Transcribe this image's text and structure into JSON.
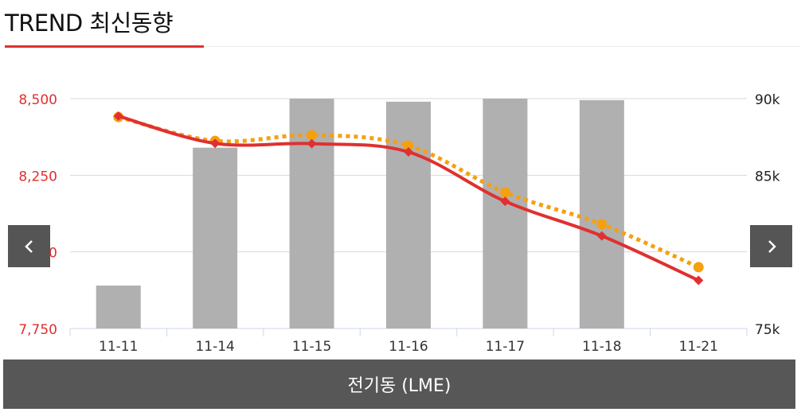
{
  "header": {
    "title": "TREND 최신동향"
  },
  "footer": {
    "label": "전기동 (LME)"
  },
  "nav": {
    "prev_icon": "chevron-left-icon",
    "next_icon": "chevron-right-icon"
  },
  "colors": {
    "bar": "#b0b0b0",
    "line_main": "#e03030",
    "line_dotted": "#f5a011",
    "left_axis_text": "#e03030",
    "accent": "#e03030"
  },
  "chart_data": {
    "type": "bar+line",
    "categories": [
      "11-11",
      "11-14",
      "11-15",
      "11-16",
      "11-17",
      "11-18",
      "11-21"
    ],
    "left_axis": {
      "ticks": [
        "7,750",
        "8,000",
        "8,250",
        "8,500"
      ],
      "ylim": [
        7750,
        8500
      ]
    },
    "right_axis": {
      "ticks": [
        "75k",
        "80k",
        "85k",
        "90k"
      ],
      "ylim": [
        75000,
        90000
      ]
    },
    "grid": true,
    "series": [
      {
        "type": "bar",
        "axis": "right",
        "values": [
          77800,
          86800,
          90000,
          89800,
          90000,
          89900,
          null
        ]
      },
      {
        "type": "line",
        "axis": "left",
        "style": "solid",
        "marker": "diamond",
        "values": [
          8443,
          8354,
          8353,
          8326,
          8165,
          8052,
          7907
        ]
      },
      {
        "type": "line",
        "axis": "left",
        "style": "dotted",
        "marker": "circle",
        "values": [
          8440,
          8362,
          8381,
          8347,
          8194,
          8090,
          7950
        ]
      }
    ]
  }
}
